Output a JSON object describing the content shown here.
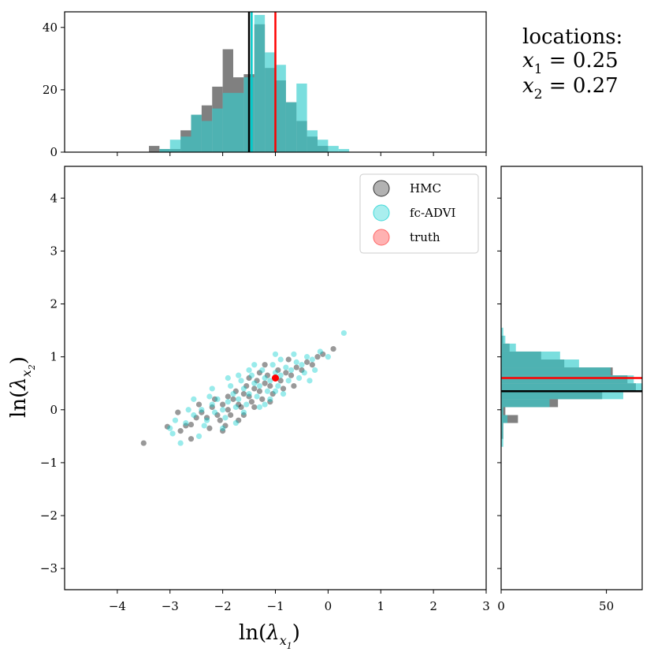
{
  "chart_data": {
    "type": "scatter",
    "xlabel": "ln(λx1)",
    "ylabel": "ln(λx2)",
    "xlim": [
      -5.0,
      3.0
    ],
    "ylim": [
      -3.4,
      4.6
    ],
    "x_ticks": [
      "−4",
      "−3",
      "−2",
      "−1",
      "0",
      "1",
      "2",
      "3"
    ],
    "x_tick_values": [
      -4,
      -3,
      -2,
      -1,
      0,
      1,
      2,
      3
    ],
    "y_ticks": [
      "−3",
      "−2",
      "−1",
      "0",
      "1",
      "2",
      "3",
      "4"
    ],
    "y_tick_values": [
      -3,
      -2,
      -1,
      0,
      1,
      2,
      3,
      4
    ],
    "annotation": {
      "title": "locations:",
      "line1": {
        "var": "x",
        "sub": "1",
        "value": " = 0.25"
      },
      "line2": {
        "var": "x",
        "sub": "2",
        "value": " = 0.27"
      }
    },
    "legend": [
      {
        "label": "HMC",
        "color": "#555555"
      },
      {
        "label": "fc-ADVI",
        "color": "#40d9d9"
      },
      {
        "label": "truth",
        "color": "#ff6666"
      }
    ],
    "colors": {
      "hmc": "#000000",
      "advi": "#00cccc",
      "truth": "#ff0000",
      "hmc_hist": "#808080",
      "advi_hist": "#33cccc",
      "overlap_hist": "#2e9e9e"
    },
    "series": [
      {
        "name": "HMC",
        "points": [
          [
            -3.5,
            -0.63
          ],
          [
            -3.05,
            -0.32
          ],
          [
            -2.8,
            -0.4
          ],
          [
            -2.6,
            -0.28
          ],
          [
            -2.5,
            -0.15
          ],
          [
            -2.7,
            -0.3
          ],
          [
            -2.4,
            -0.05
          ],
          [
            -2.3,
            -0.15
          ],
          [
            -2.2,
            0.05
          ],
          [
            -2.1,
            -0.1
          ],
          [
            -2.0,
            0.1
          ],
          [
            -1.9,
            0.0
          ],
          [
            -1.8,
            0.2
          ],
          [
            -1.7,
            0.1
          ],
          [
            -1.6,
            0.3
          ],
          [
            -1.5,
            0.25
          ],
          [
            -1.4,
            0.4
          ],
          [
            -1.3,
            0.35
          ],
          [
            -1.2,
            0.5
          ],
          [
            -1.1,
            0.45
          ],
          [
            -1.0,
            0.6
          ],
          [
            -0.9,
            0.55
          ],
          [
            -0.8,
            0.7
          ],
          [
            -0.7,
            0.65
          ],
          [
            -0.6,
            0.8
          ],
          [
            -0.5,
            0.75
          ],
          [
            -0.4,
            0.9
          ],
          [
            -0.3,
            0.85
          ],
          [
            -0.2,
            1.0
          ],
          [
            0.1,
            1.15
          ],
          [
            -0.1,
            1.05
          ],
          [
            -2.25,
            -0.35
          ],
          [
            -2.05,
            -0.2
          ],
          [
            -1.85,
            -0.1
          ],
          [
            -1.65,
            0.05
          ],
          [
            -1.45,
            0.15
          ],
          [
            -1.25,
            0.2
          ],
          [
            -1.05,
            0.3
          ],
          [
            -0.85,
            0.4
          ],
          [
            -1.75,
            0.35
          ],
          [
            -1.55,
            0.45
          ],
          [
            -1.35,
            0.55
          ],
          [
            -1.15,
            0.65
          ],
          [
            -0.95,
            0.75
          ],
          [
            -2.45,
            0.1
          ],
          [
            -2.85,
            -0.05
          ],
          [
            -2.0,
            -0.4
          ],
          [
            -1.6,
            -0.1
          ],
          [
            -1.3,
            0.7
          ],
          [
            -0.65,
            0.45
          ],
          [
            -2.6,
            -0.55
          ],
          [
            -1.9,
            0.25
          ],
          [
            -1.7,
            -0.2
          ],
          [
            -1.4,
            0.05
          ],
          [
            -1.1,
            0.15
          ],
          [
            -0.75,
            0.95
          ],
          [
            -2.15,
            0.2
          ],
          [
            -1.95,
            -0.3
          ],
          [
            -1.5,
            0.6
          ],
          [
            -1.2,
            0.85
          ]
        ]
      },
      {
        "name": "fc-ADVI",
        "points": [
          [
            -2.8,
            -0.63
          ],
          [
            -2.95,
            -0.45
          ],
          [
            -3.0,
            -0.35
          ],
          [
            -2.7,
            -0.25
          ],
          [
            -2.55,
            -0.1
          ],
          [
            -2.4,
            0.0
          ],
          [
            -2.3,
            -0.2
          ],
          [
            -2.2,
            0.1
          ],
          [
            -2.1,
            0.2
          ],
          [
            -2.0,
            0.0
          ],
          [
            -1.9,
            0.15
          ],
          [
            -1.8,
            0.3
          ],
          [
            -1.7,
            0.2
          ],
          [
            -1.6,
            0.4
          ],
          [
            -1.5,
            0.3
          ],
          [
            -1.4,
            0.5
          ],
          [
            -1.3,
            0.45
          ],
          [
            -1.2,
            0.6
          ],
          [
            -1.1,
            0.55
          ],
          [
            -1.0,
            0.7
          ],
          [
            -0.9,
            0.65
          ],
          [
            -0.8,
            0.8
          ],
          [
            -0.7,
            0.75
          ],
          [
            -0.6,
            0.9
          ],
          [
            -0.5,
            0.85
          ],
          [
            -0.4,
            1.0
          ],
          [
            -0.3,
            0.95
          ],
          [
            0.3,
            1.45
          ],
          [
            -0.15,
            1.1
          ],
          [
            0.0,
            1.0
          ],
          [
            -2.65,
            0.0
          ],
          [
            -2.35,
            -0.3
          ],
          [
            -2.15,
            -0.05
          ],
          [
            -1.95,
            -0.15
          ],
          [
            -1.75,
            0.05
          ],
          [
            -1.55,
            0.1
          ],
          [
            -1.35,
            0.25
          ],
          [
            -1.15,
            0.35
          ],
          [
            -0.95,
            0.45
          ],
          [
            -0.75,
            0.55
          ],
          [
            -0.55,
            0.6
          ],
          [
            -1.85,
            0.45
          ],
          [
            -1.65,
            0.55
          ],
          [
            -1.45,
            0.65
          ],
          [
            -1.25,
            0.75
          ],
          [
            -1.05,
            0.85
          ],
          [
            -2.2,
            0.4
          ],
          [
            -1.9,
            0.6
          ],
          [
            -1.0,
            1.05
          ],
          [
            -0.85,
            0.3
          ],
          [
            -1.2,
            0.1
          ],
          [
            -1.6,
            -0.05
          ],
          [
            -2.0,
            -0.35
          ],
          [
            -2.45,
            -0.5
          ],
          [
            -0.45,
            0.7
          ],
          [
            -1.4,
            0.85
          ],
          [
            -1.75,
            -0.25
          ],
          [
            -0.65,
            1.05
          ],
          [
            -2.55,
            0.2
          ],
          [
            -1.3,
            0.05
          ],
          [
            -0.9,
            0.95
          ],
          [
            -1.1,
            0.2
          ],
          [
            -1.5,
            0.75
          ],
          [
            -2.25,
            0.25
          ],
          [
            -0.35,
            0.55
          ],
          [
            -0.25,
            0.75
          ],
          [
            -1.7,
            0.65
          ],
          [
            -2.9,
            -0.2
          ],
          [
            -1.0,
            0.35
          ]
        ]
      },
      {
        "name": "truth",
        "points": [
          [
            -1.0,
            0.6
          ]
        ]
      }
    ],
    "lines": {
      "hmc_mean_x": -1.5,
      "advi_mean_x": -1.45,
      "truth_x": -1.0,
      "hmc_mean_y": 0.35,
      "truth_y": 0.6
    },
    "top_hist": {
      "ylim": [
        0,
        45
      ],
      "y_ticks": [
        "0",
        "20",
        "40"
      ],
      "y_tick_values": [
        0,
        20,
        40
      ],
      "bin_edges": [
        -3.6,
        -3.4,
        -3.2,
        -3.0,
        -2.8,
        -2.6,
        -2.4,
        -2.2,
        -2.0,
        -1.8,
        -1.6,
        -1.4,
        -1.2,
        -1.0,
        -0.8,
        -0.6,
        -0.4,
        -0.2,
        0.0,
        0.2,
        0.4
      ],
      "hmc": [
        0,
        2,
        1,
        1,
        7,
        12,
        15,
        21,
        33,
        24,
        25,
        41,
        27,
        23,
        16,
        10,
        5,
        2,
        0,
        0
      ],
      "advi": [
        0,
        0,
        1,
        4,
        5,
        12,
        10,
        14,
        19,
        19,
        24,
        44,
        32,
        28,
        16,
        22,
        7,
        4,
        2,
        1
      ]
    },
    "right_hist": {
      "xlim": [
        0,
        67
      ],
      "x_ticks": [
        "0",
        "50"
      ],
      "x_tick_values": [
        0,
        50
      ],
      "bin_edges": [
        -0.7,
        -0.55,
        -0.4,
        -0.25,
        -0.1,
        0.05,
        0.2,
        0.35,
        0.5,
        0.65,
        0.8,
        0.95,
        1.1,
        1.25,
        1.4,
        1.55
      ],
      "hmc": [
        0,
        1,
        1,
        8,
        2,
        27,
        48,
        64,
        60,
        53,
        30,
        19,
        4,
        1,
        0
      ],
      "advi": [
        1,
        1,
        1,
        3,
        1,
        23,
        58,
        67,
        63,
        52,
        37,
        28,
        7,
        2,
        1
      ]
    }
  }
}
